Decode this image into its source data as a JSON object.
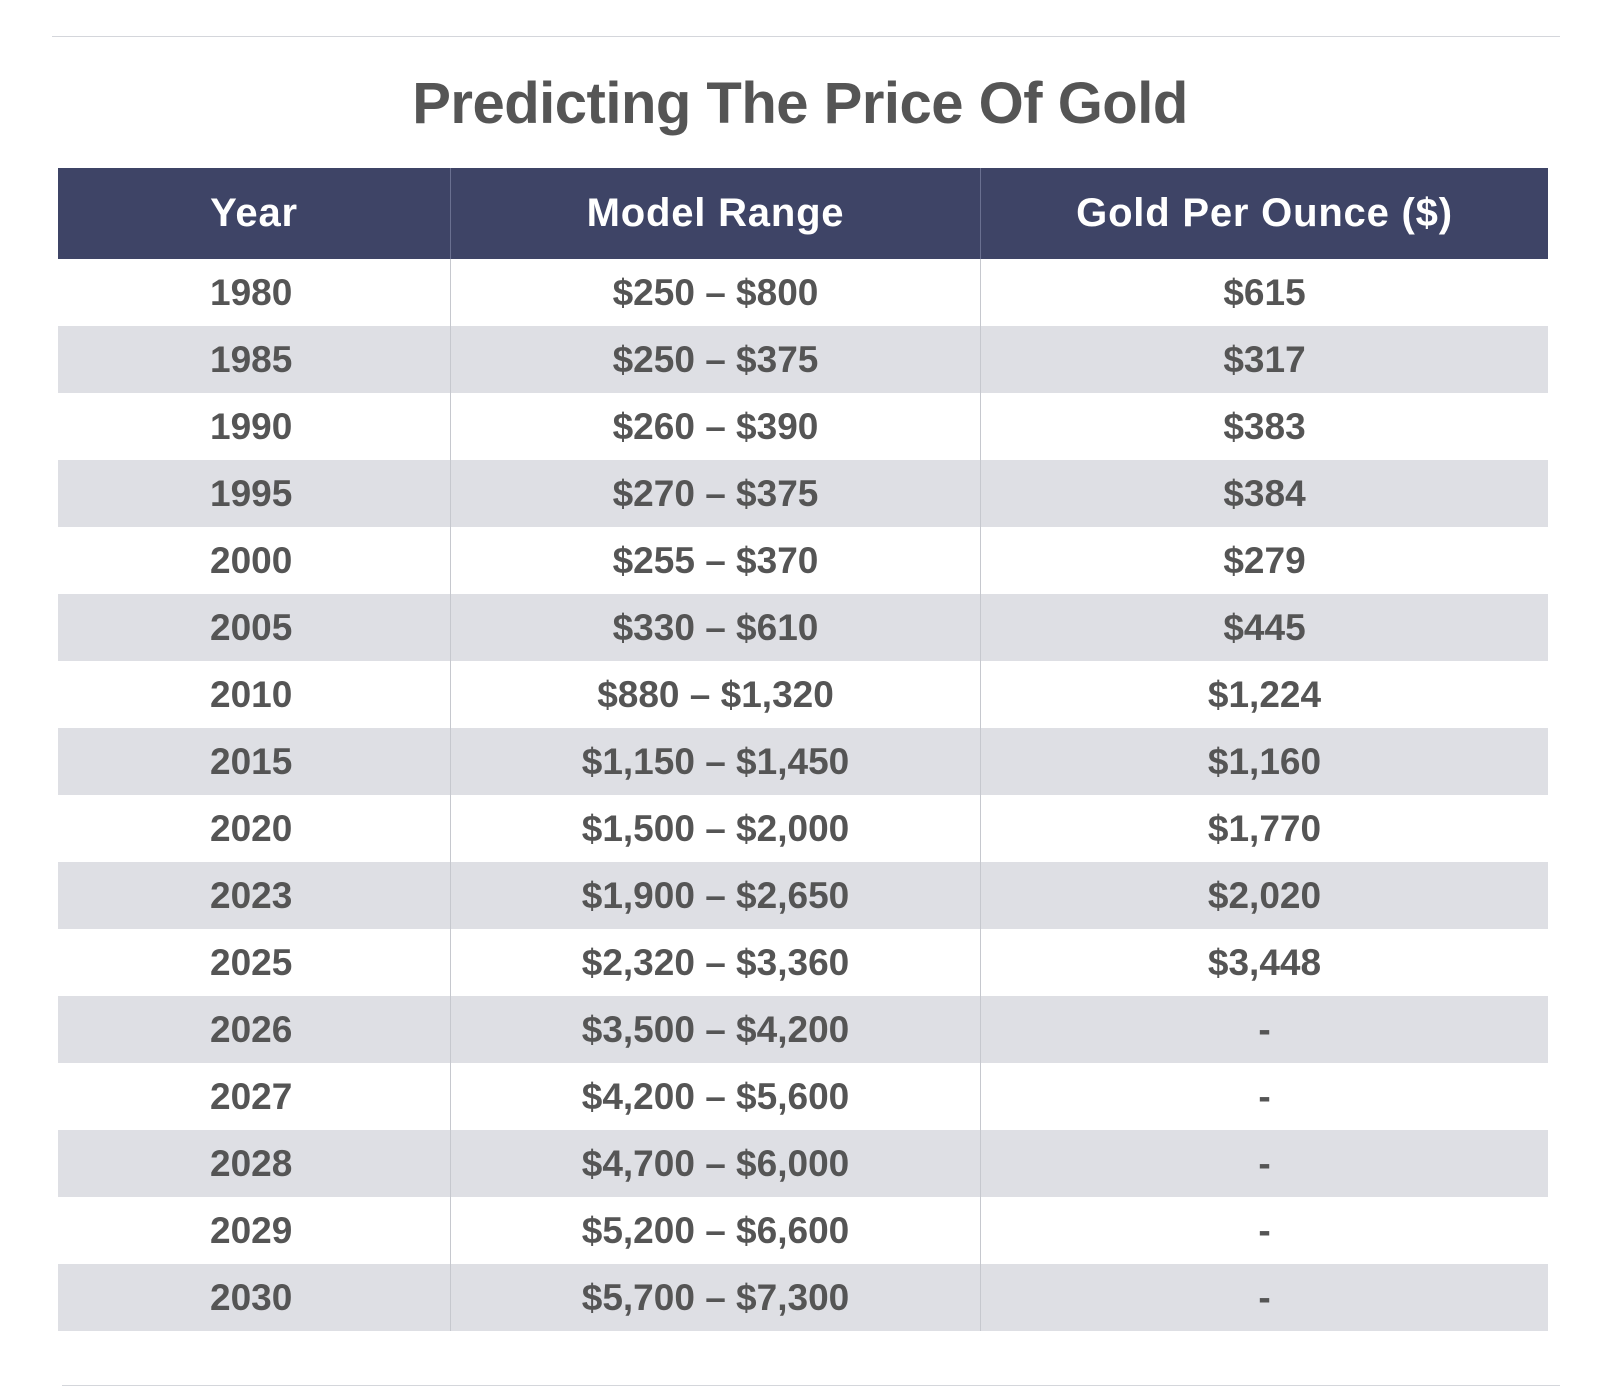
{
  "chart_data": {
    "type": "table",
    "title": "Predicting The Price Of Gold",
    "columns": [
      "Year",
      "Model Range",
      "Gold Per Ounce ($)"
    ],
    "rows": [
      [
        "1980",
        "$250 – $800",
        "$615"
      ],
      [
        "1985",
        "$250 – $375",
        "$317"
      ],
      [
        "1990",
        "$260 – $390",
        "$383"
      ],
      [
        "1995",
        "$270 – $375",
        "$384"
      ],
      [
        "2000",
        "$255 – $370",
        "$279"
      ],
      [
        "2005",
        "$330 – $610",
        "$445"
      ],
      [
        "2010",
        "$880 – $1,320",
        "$1,224"
      ],
      [
        "2015",
        "$1,150 – $1,450",
        "$1,160"
      ],
      [
        "2020",
        "$1,500 – $2,000",
        "$1,770"
      ],
      [
        "2023",
        "$1,900 – $2,650",
        "$2,020"
      ],
      [
        "2025",
        "$2,320 – $3,360",
        "$3,448"
      ],
      [
        "2026",
        "$3,500 – $4,200",
        "-"
      ],
      [
        "2027",
        "$4,200 – $5,600",
        "-"
      ],
      [
        "2028",
        "$4,700 – $6,000",
        "-"
      ],
      [
        "2029",
        "$5,200 – $6,600",
        "-"
      ],
      [
        "2030",
        "$5,700 – $7,300",
        "-"
      ]
    ]
  },
  "colors": {
    "header_background": "#3e4466",
    "header_text": "#ffffff",
    "stripe": "#dedfe4",
    "text": "#555555"
  }
}
